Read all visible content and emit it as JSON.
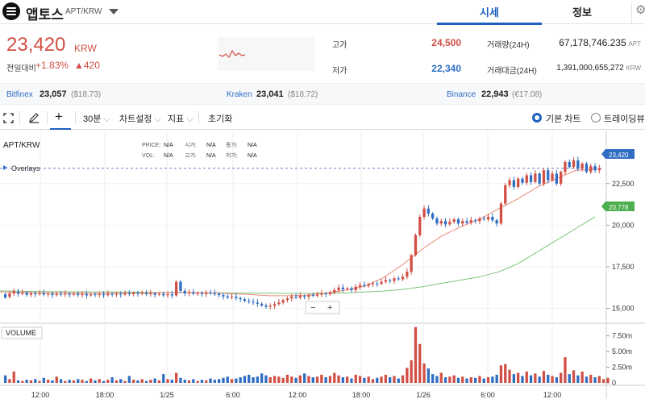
{
  "header": {
    "coin_name": "앱토스",
    "pair": "APT/KRW",
    "tabs": [
      "시세",
      "정보"
    ],
    "icons": [
      "coin-logo-icon",
      "chevron-down-icon",
      "gear-icon"
    ]
  },
  "price": {
    "value": "23,420",
    "currency": "KRW",
    "change_label": "전일대비",
    "change_percent": "+1.83%",
    "change_value": "▲420",
    "up_color": "#d24f45",
    "down_color": "#2f6ec4"
  },
  "stats": {
    "high_label": "고가",
    "high": "24,500",
    "low_label": "저가",
    "low": "22,340",
    "volume_label": "거래량(24H)",
    "volume": "67,178,746.235",
    "volume_unit": "APT",
    "amount_label": "거래대금(24H)",
    "amount": "1,391,000,655,272",
    "amount_unit": "KRW"
  },
  "exchanges": [
    {
      "name": "Bitfinex",
      "price": "23,057",
      "sub": "($18.73)"
    },
    {
      "name": "Kraken",
      "price": "23,041",
      "sub": "($18.72)"
    },
    {
      "name": "Binance",
      "price": "22,943",
      "sub": "(€17.08)"
    }
  ],
  "toolbar": {
    "interval": "30분",
    "settings": "차트설정",
    "indicator": "지표",
    "reset": "초기화",
    "chart_basic": "기본 차트",
    "chart_trading": "트레이딩뷰"
  },
  "chart_data": {
    "type": "candlestick",
    "symbol": "APT/KRW",
    "overlays_label": "Overlays",
    "info_labels": {
      "price": "PRICE:",
      "open": "시가:",
      "close": "종가:",
      "vol": "VOL:",
      "high": "고가:",
      "low": "저가:",
      "na": "N/A"
    },
    "last_price": "23,420",
    "ma_long_label": "20,778",
    "y_ticks": [
      "22,500",
      "20,000",
      "17,500",
      "15,000"
    ],
    "ylim": [
      14300,
      25300
    ],
    "volume_title": "VOLUME",
    "volume_ticks": [
      "7.50m",
      "5.00m",
      "2.50m",
      "0"
    ],
    "volume_ylim": [
      0,
      9000000
    ],
    "x_ticks": [
      "12:00",
      "18:00",
      "1/25",
      "6:00",
      "12:00",
      "18:00",
      "1/26",
      "6:00",
      "12:00"
    ],
    "zoom_controls": [
      "−",
      "+"
    ],
    "ma_short": [
      15990,
      15960,
      15930,
      15920,
      15910,
      15900,
      15910,
      15920,
      15940,
      15960,
      15960,
      15930,
      15880,
      15830,
      15760,
      15760,
      15790,
      15920,
      16100,
      16330,
      16860,
      17650,
      18560,
      19350,
      19900,
      20370,
      21000,
      21600,
      22300,
      22800,
      23300,
      23380
    ],
    "ma_long": [
      16050,
      16030,
      16010,
      16000,
      15990,
      15980,
      15980,
      15970,
      15960,
      15950,
      15950,
      15940,
      15930,
      15920,
      15910,
      15900,
      15900,
      15910,
      15930,
      15980,
      16040,
      16140,
      16300,
      16500,
      16700,
      16900,
      17200,
      17700,
      18400,
      19100,
      19800,
      20500
    ],
    "candles": [
      [
        15850,
        15650
      ],
      [
        15700,
        15900
      ],
      [
        15900,
        16050
      ],
      [
        16000,
        15880
      ],
      [
        15880,
        15950
      ],
      [
        15950,
        15820
      ],
      [
        15820,
        15900
      ],
      [
        15900,
        15860
      ],
      [
        15860,
        15920
      ],
      [
        15920,
        15840
      ],
      [
        15840,
        15880
      ],
      [
        15880,
        15800
      ],
      [
        15800,
        15870
      ],
      [
        15870,
        15830
      ],
      [
        15830,
        15880
      ],
      [
        15880,
        15820
      ],
      [
        15820,
        15870
      ],
      [
        15870,
        15800
      ],
      [
        15800,
        15860
      ],
      [
        15860,
        15780
      ],
      [
        15780,
        15840
      ],
      [
        15840,
        15800
      ],
      [
        15800,
        15850
      ],
      [
        15850,
        15790
      ],
      [
        15790,
        15870
      ],
      [
        15870,
        15820
      ],
      [
        15820,
        15880
      ],
      [
        15880,
        15830
      ],
      [
        15830,
        15900
      ],
      [
        15900,
        15860
      ],
      [
        15860,
        15940
      ],
      [
        15940,
        15880
      ],
      [
        15880,
        15920
      ],
      [
        15920,
        15850
      ],
      [
        15850,
        15900
      ],
      [
        15900,
        15820
      ],
      [
        15820,
        15870
      ],
      [
        15870,
        15790
      ],
      [
        15790,
        15850
      ],
      [
        15850,
        15780
      ],
      [
        15780,
        16600
      ],
      [
        16600,
        16050
      ],
      [
        16050,
        15900
      ],
      [
        15900,
        15950
      ],
      [
        15950,
        15880
      ],
      [
        15880,
        15920
      ],
      [
        15920,
        15860
      ],
      [
        15860,
        15940
      ],
      [
        15940,
        15900
      ],
      [
        15900,
        15870
      ],
      [
        15870,
        15800
      ],
      [
        15800,
        15720
      ],
      [
        15720,
        15650
      ],
      [
        15650,
        15700
      ],
      [
        15700,
        15620
      ],
      [
        15620,
        15550
      ],
      [
        15550,
        15450
      ],
      [
        15450,
        15400
      ],
      [
        15400,
        15350
      ],
      [
        15350,
        15280
      ],
      [
        15280,
        15180
      ],
      [
        15180,
        15100
      ],
      [
        15100,
        15150
      ],
      [
        15150,
        15250
      ],
      [
        15250,
        15350
      ],
      [
        15350,
        15500
      ],
      [
        15500,
        15600
      ],
      [
        15600,
        15700
      ],
      [
        15700,
        15650
      ],
      [
        15650,
        15750
      ],
      [
        15750,
        15700
      ],
      [
        15700,
        15800
      ],
      [
        15800,
        15760
      ],
      [
        15760,
        15820
      ],
      [
        15820,
        15900
      ],
      [
        15900,
        15850
      ],
      [
        15850,
        15950
      ],
      [
        15950,
        16100
      ],
      [
        16100,
        16250
      ],
      [
        16250,
        16150
      ],
      [
        16150,
        16200
      ],
      [
        16200,
        16100
      ],
      [
        16100,
        16300
      ],
      [
        16300,
        16400
      ],
      [
        16400,
        16350
      ],
      [
        16350,
        16450
      ],
      [
        16450,
        16500
      ],
      [
        16500,
        16480
      ],
      [
        16480,
        16600
      ],
      [
        16600,
        16700
      ],
      [
        16700,
        16650
      ],
      [
        16650,
        16800
      ],
      [
        16800,
        16750
      ],
      [
        16750,
        16900
      ],
      [
        16900,
        17200
      ],
      [
        17200,
        18200
      ],
      [
        18200,
        19400
      ],
      [
        19400,
        20500
      ],
      [
        20500,
        21000
      ],
      [
        21000,
        20700
      ],
      [
        20700,
        20400
      ],
      [
        20400,
        20100
      ],
      [
        20100,
        20250
      ],
      [
        20250,
        20050
      ],
      [
        20050,
        20200
      ],
      [
        20200,
        20350
      ],
      [
        20350,
        20100
      ],
      [
        20100,
        20250
      ],
      [
        20250,
        20150
      ],
      [
        20150,
        20300
      ],
      [
        20300,
        20250
      ],
      [
        20250,
        20400
      ],
      [
        20400,
        20350
      ],
      [
        20350,
        20500
      ],
      [
        20500,
        20300
      ],
      [
        20300,
        20100
      ],
      [
        20100,
        21300
      ],
      [
        21300,
        22400
      ],
      [
        22400,
        22700
      ],
      [
        22700,
        22300
      ],
      [
        22300,
        22800
      ],
      [
        22800,
        22550
      ],
      [
        22550,
        23000
      ],
      [
        23000,
        22600
      ],
      [
        22600,
        23100
      ],
      [
        23100,
        22500
      ],
      [
        22500,
        23300
      ],
      [
        23300,
        22700
      ],
      [
        22700,
        23100
      ],
      [
        23100,
        22500
      ],
      [
        22500,
        23200
      ],
      [
        23200,
        23800
      ],
      [
        23800,
        23500
      ],
      [
        23500,
        23900
      ],
      [
        23900,
        23400
      ],
      [
        23400,
        23700
      ],
      [
        23700,
        23200
      ],
      [
        23200,
        23550
      ],
      [
        23550,
        23300
      ],
      [
        23300,
        23420
      ]
    ],
    "volumes": [
      1.2,
      0.6,
      1.8,
      0.4,
      0.3,
      0.5,
      0.4,
      0.6,
      0.3,
      0.8,
      0.5,
      0.4,
      1.0,
      0.6,
      0.3,
      0.5,
      0.4,
      0.6,
      0.5,
      0.3,
      0.7,
      0.4,
      0.6,
      0.3,
      0.5,
      0.9,
      0.4,
      0.6,
      0.3,
      1.1,
      0.5,
      0.4,
      0.6,
      0.3,
      0.5,
      0.7,
      0.4,
      1.4,
      0.6,
      0.5,
      1.6,
      0.8,
      0.5,
      0.4,
      0.6,
      0.3,
      0.5,
      0.4,
      0.7,
      0.5,
      0.6,
      0.8,
      1.0,
      0.6,
      0.7,
      0.9,
      1.1,
      1.3,
      0.9,
      1.0,
      1.5,
      1.2,
      0.9,
      1.1,
      1.0,
      0.8,
      1.3,
      1.0,
      0.8,
      1.2,
      1.5,
      1.1,
      0.9,
      1.0,
      1.3,
      0.9,
      1.1,
      1.6,
      1.2,
      0.9,
      1.0,
      0.7,
      1.3,
      1.1,
      0.8,
      1.0,
      0.6,
      0.8,
      1.0,
      1.3,
      0.9,
      1.1,
      0.7,
      1.2,
      2.4,
      3.6,
      8.9,
      6.2,
      3.1,
      2.3,
      1.4,
      1.1,
      1.6,
      0.9,
      1.0,
      1.2,
      0.8,
      1.0,
      0.7,
      0.9,
      0.8,
      1.1,
      0.7,
      0.9,
      1.0,
      1.3,
      2.8,
      3.0,
      2.1,
      1.4,
      1.6,
      1.1,
      1.8,
      1.2,
      1.5,
      1.0,
      1.9,
      1.3,
      1.1,
      0.9,
      1.6,
      4.1,
      1.4,
      2.0,
      1.2,
      1.8,
      1.0,
      1.3,
      0.9,
      1.1,
      0.6,
      0.8
    ]
  }
}
